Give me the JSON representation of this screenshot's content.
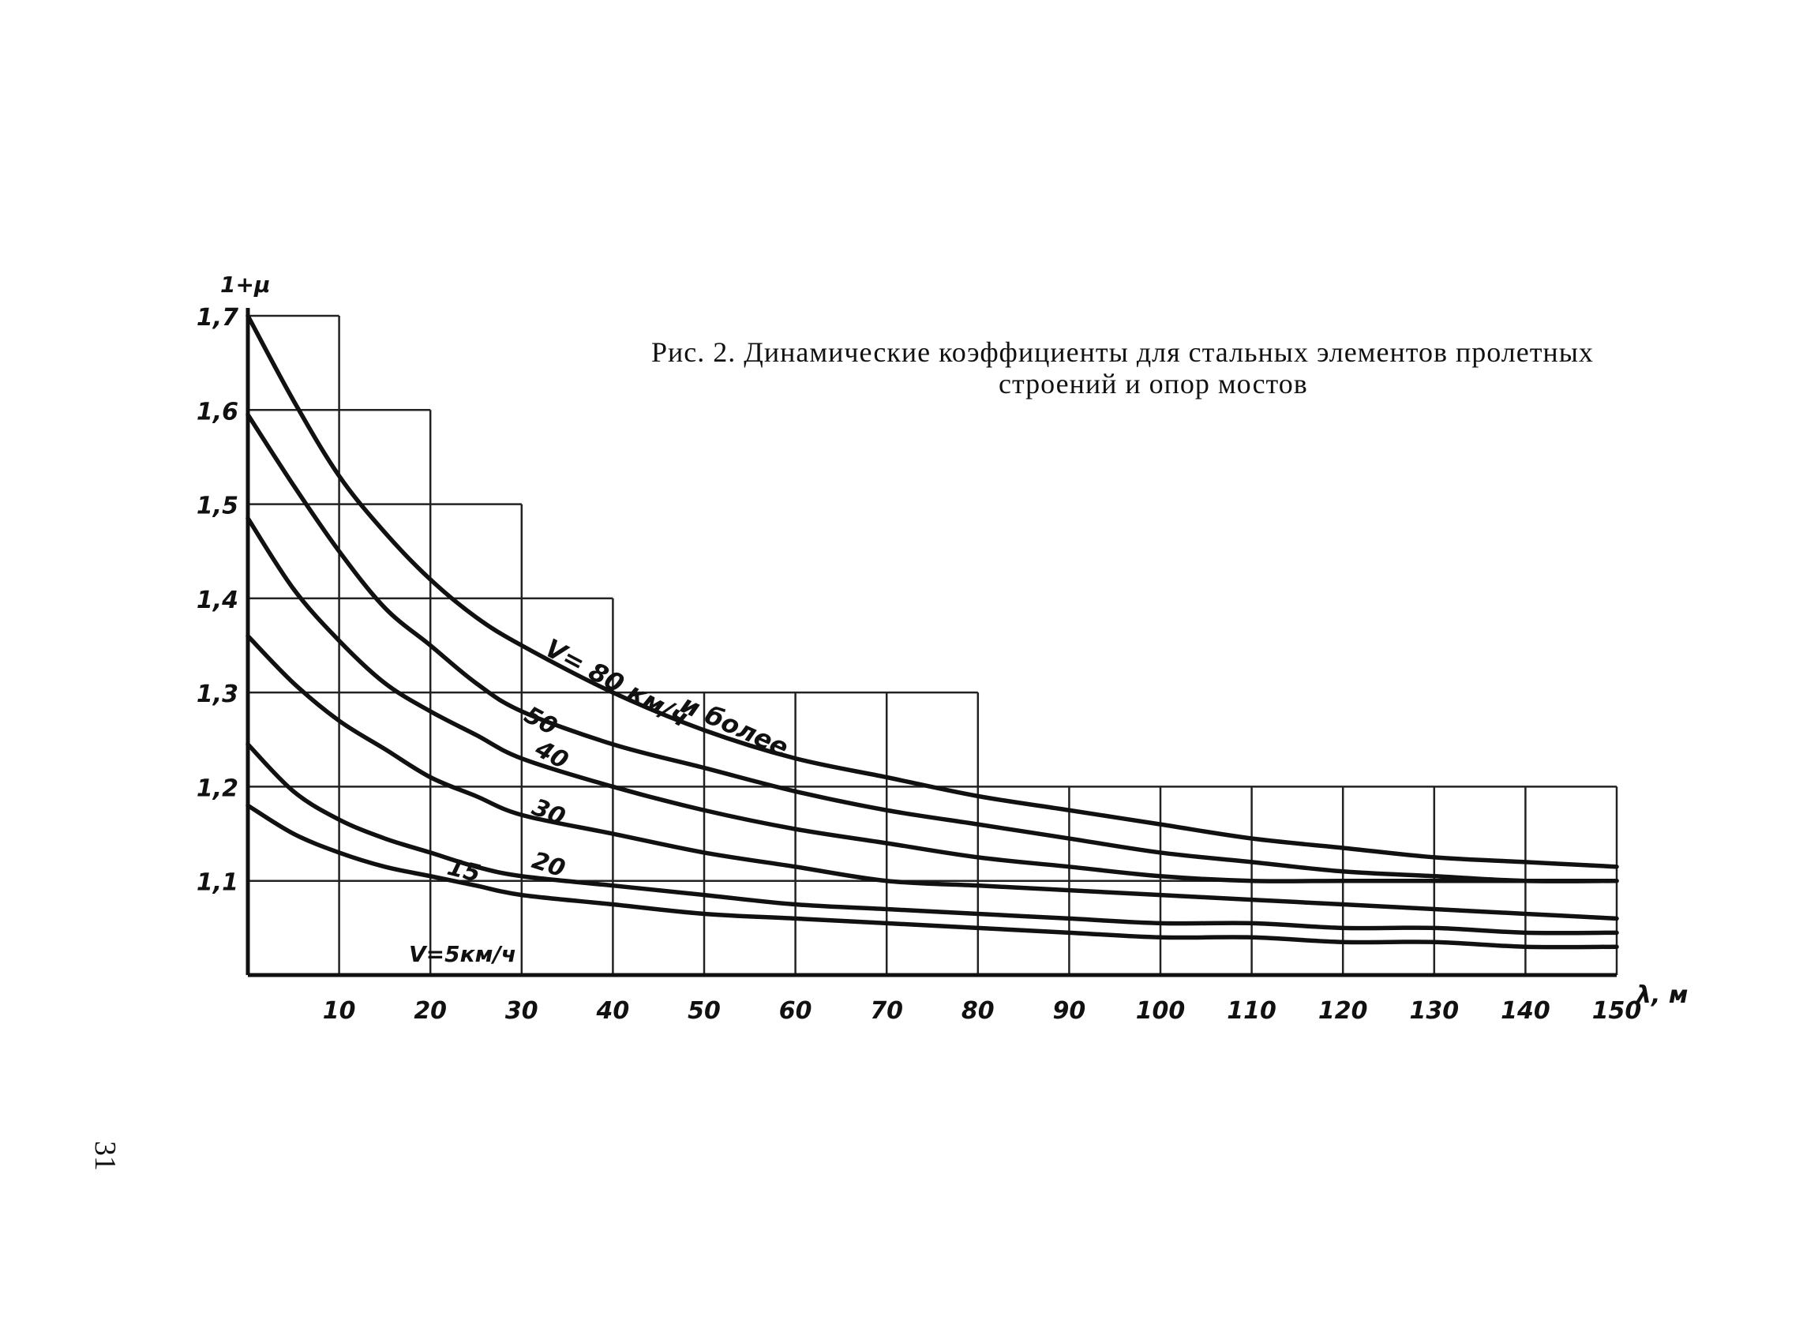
{
  "caption": {
    "line1": "Рис. 2. Динамические коэффициенты для стальных элементов пролетных",
    "line2": "строений и опор мостов"
  },
  "page_number": "31",
  "chart_data": {
    "type": "line",
    "ylabel": "1+μ",
    "xlabel": "λ, м",
    "xlim": [
      0,
      150
    ],
    "ylim": [
      1.0,
      1.7
    ],
    "x_ticks": [
      "10",
      "20",
      "30",
      "40",
      "50",
      "60",
      "70",
      "80",
      "90",
      "100",
      "110",
      "120",
      "130",
      "140",
      "150"
    ],
    "y_ticks": [
      "1,1",
      "1,2",
      "1,3",
      "1,4",
      "1,5",
      "1,6",
      "1,7"
    ],
    "grid": true,
    "step_envelope": [
      {
        "x": [
          0,
          10
        ],
        "y": 1.7
      },
      {
        "x": [
          10,
          20
        ],
        "y": 1.6
      },
      {
        "x": [
          20,
          30
        ],
        "y": 1.5
      },
      {
        "x": [
          30,
          40
        ],
        "y": 1.4
      },
      {
        "x": [
          40,
          80
        ],
        "y": 1.3
      },
      {
        "x": [
          80,
          150
        ],
        "y": 1.2
      }
    ],
    "series": [
      {
        "name": "V= 80 км/ч и более",
        "label_parts": [
          "V= 80 км/ч",
          "и более"
        ],
        "x": [
          0,
          5,
          10,
          15,
          20,
          25,
          30,
          40,
          50,
          60,
          70,
          80,
          90,
          100,
          110,
          120,
          130,
          140,
          150
        ],
        "y": [
          1.7,
          1.61,
          1.53,
          1.47,
          1.42,
          1.38,
          1.35,
          1.3,
          1.26,
          1.23,
          1.21,
          1.19,
          1.175,
          1.16,
          1.145,
          1.135,
          1.125,
          1.12,
          1.115
        ]
      },
      {
        "name": "50",
        "x": [
          0,
          5,
          10,
          15,
          20,
          25,
          30,
          40,
          50,
          60,
          70,
          80,
          90,
          100,
          110,
          120,
          130,
          140,
          150
        ],
        "y": [
          1.595,
          1.52,
          1.45,
          1.39,
          1.35,
          1.31,
          1.28,
          1.245,
          1.22,
          1.195,
          1.175,
          1.16,
          1.145,
          1.13,
          1.12,
          1.11,
          1.105,
          1.1,
          1.1
        ]
      },
      {
        "name": "40",
        "x": [
          0,
          5,
          10,
          15,
          20,
          25,
          30,
          40,
          50,
          60,
          70,
          80,
          90,
          100,
          110,
          120,
          130,
          140,
          150
        ],
        "y": [
          1.485,
          1.41,
          1.355,
          1.31,
          1.28,
          1.255,
          1.23,
          1.2,
          1.175,
          1.155,
          1.14,
          1.125,
          1.115,
          1.105,
          1.1,
          1.1,
          1.1,
          1.1,
          1.1
        ]
      },
      {
        "name": "30",
        "x": [
          0,
          5,
          10,
          15,
          20,
          25,
          30,
          40,
          50,
          60,
          70,
          80,
          90,
          100,
          110,
          120,
          130,
          140,
          150
        ],
        "y": [
          1.36,
          1.31,
          1.27,
          1.24,
          1.21,
          1.19,
          1.17,
          1.15,
          1.13,
          1.115,
          1.1,
          1.095,
          1.09,
          1.085,
          1.08,
          1.075,
          1.07,
          1.065,
          1.06
        ]
      },
      {
        "name": "20",
        "x": [
          0,
          5,
          10,
          15,
          20,
          25,
          30,
          40,
          50,
          60,
          70,
          80,
          90,
          100,
          110,
          120,
          130,
          140,
          150
        ],
        "y": [
          1.245,
          1.195,
          1.165,
          1.145,
          1.13,
          1.115,
          1.105,
          1.095,
          1.085,
          1.075,
          1.07,
          1.065,
          1.06,
          1.055,
          1.055,
          1.05,
          1.05,
          1.045,
          1.045
        ]
      },
      {
        "name": "15",
        "x": [
          0,
          5,
          10,
          15,
          20,
          25,
          30,
          40,
          50,
          60,
          70,
          80,
          90,
          100,
          110,
          120,
          130,
          140,
          150
        ],
        "y": [
          1.18,
          1.15,
          1.13,
          1.115,
          1.105,
          1.095,
          1.085,
          1.075,
          1.065,
          1.06,
          1.055,
          1.05,
          1.045,
          1.04,
          1.04,
          1.035,
          1.035,
          1.03,
          1.03
        ]
      }
    ],
    "annotations": [
      "V=5км/ч"
    ]
  }
}
